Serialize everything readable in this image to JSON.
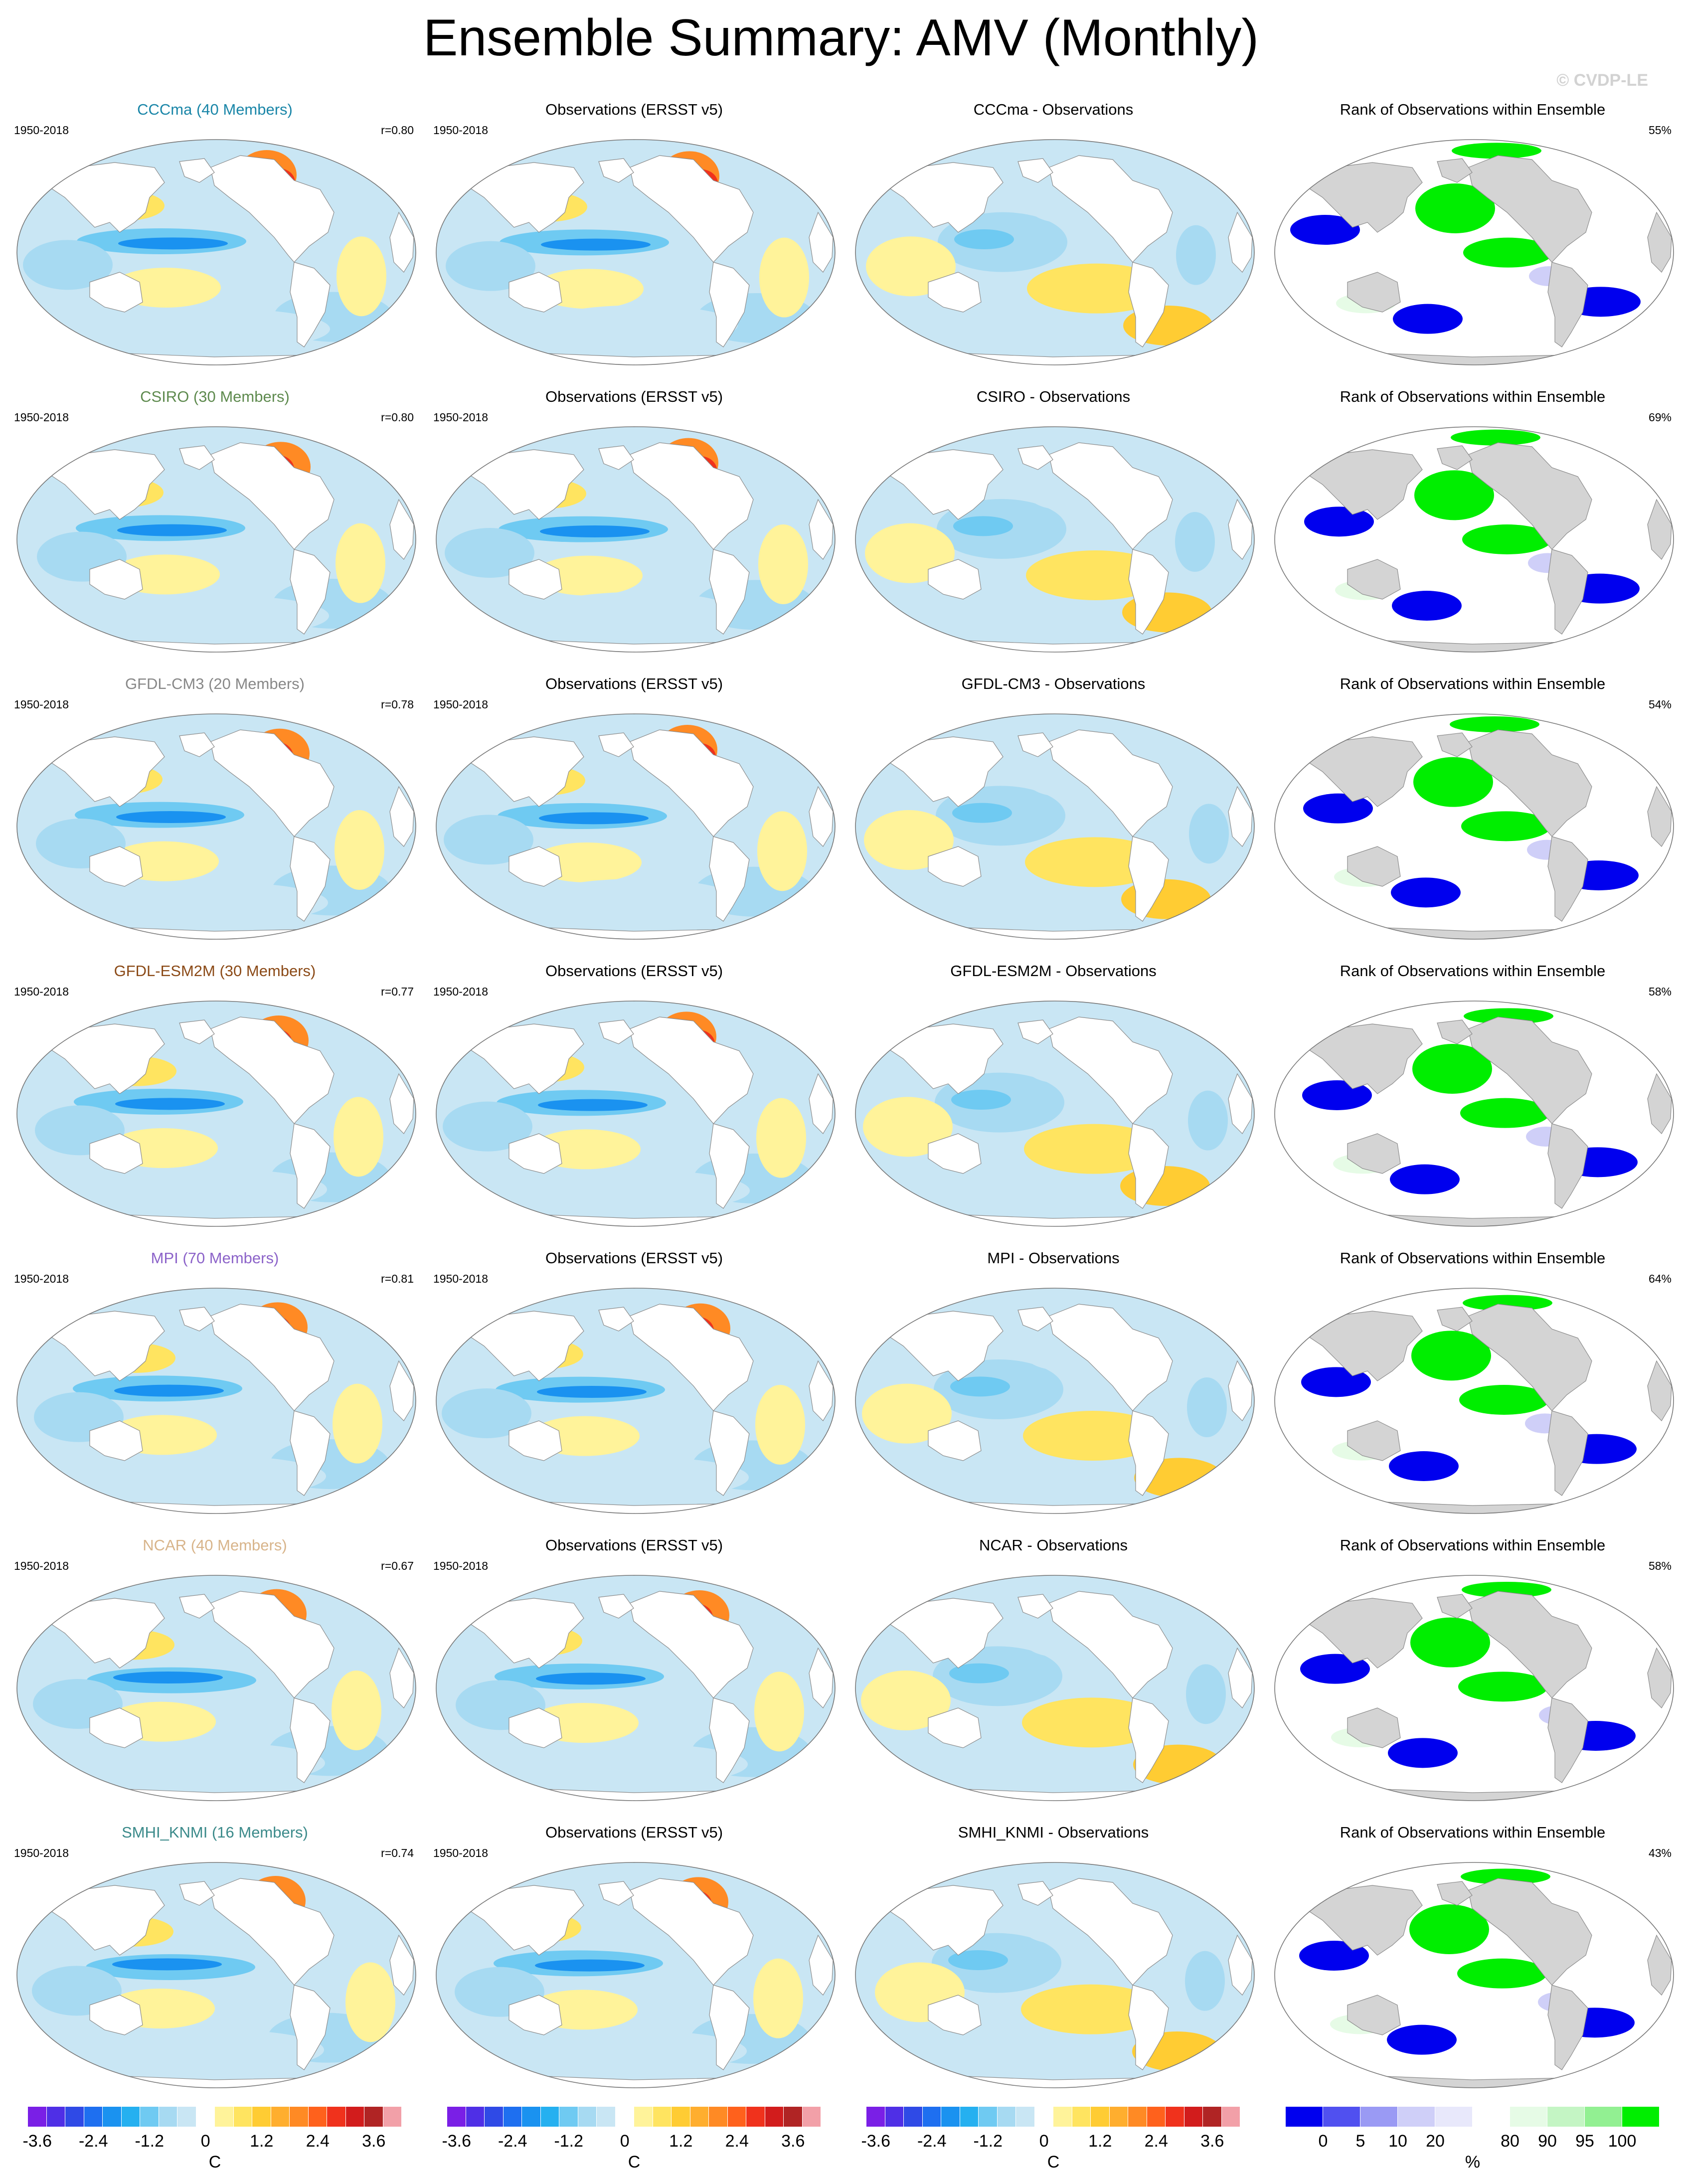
{
  "title": "Ensemble Summary: AMV (Monthly)",
  "copyright": "© CVDP-LE",
  "period": "1950-2018",
  "obs_title": "Observations (ERSST v5)",
  "rank_title": "Rank of Observations within Ensemble",
  "models": [
    {
      "title": "CCCma (40 Members)",
      "corr": "r=0.80",
      "diff": "CCCma - Observations",
      "rank_pct": "55%",
      "color": "#1a86a8"
    },
    {
      "title": "CSIRO (30 Members)",
      "corr": "r=0.80",
      "diff": "CSIRO - Observations",
      "rank_pct": "69%",
      "color": "#5e8a4e"
    },
    {
      "title": "GFDL-CM3 (20 Members)",
      "corr": "r=0.78",
      "diff": "GFDL-CM3 - Observations",
      "rank_pct": "54%",
      "color": "#888888"
    },
    {
      "title": "GFDL-ESM2M (30 Members)",
      "corr": "r=0.77",
      "diff": "GFDL-ESM2M - Observations",
      "rank_pct": "58%",
      "color": "#8b4a17"
    },
    {
      "title": "MPI (70 Members)",
      "corr": "r=0.81",
      "diff": "MPI - Observations",
      "rank_pct": "64%",
      "color": "#8c63c9"
    },
    {
      "title": "NCAR (40 Members)",
      "corr": "r=0.67",
      "diff": "NCAR - Observations",
      "rank_pct": "58%",
      "color": "#d8b48a"
    },
    {
      "title": "SMHI_KNMI (16 Members)",
      "corr": "r=0.74",
      "diff": "SMHI_KNMI - Observations",
      "rank_pct": "43%",
      "color": "#3b8a8a"
    }
  ],
  "colorbars": {
    "temp_labels": [
      "-3.6",
      "-2.4",
      "-1.2",
      "0",
      "1.2",
      "2.4",
      "3.6"
    ],
    "temp_unit": "C",
    "temp_colors": [
      "#7a1fe6",
      "#4f2fe6",
      "#2f4ae6",
      "#1e6ff0",
      "#1a92f0",
      "#25b0f0",
      "#6fcaf2",
      "#a7daf2",
      "#c9e6f4",
      "#ffffff",
      "#fff39a",
      "#ffe460",
      "#ffcc33",
      "#ffae2e",
      "#ff8a24",
      "#ff611c",
      "#f0321c",
      "#d21c1c",
      "#b02424",
      "#f2a0a8"
    ],
    "rank_labels": [
      "0",
      "5",
      "10",
      "20",
      "80",
      "90",
      "95",
      "100"
    ],
    "rank_unit": "%",
    "rank_colors": [
      "#0000ee",
      "#5050f0",
      "#9a9af4",
      "#cfcff8",
      "#e8e8fb",
      "#ffffff",
      "#e6fbe6",
      "#c4f5c4",
      "#92f092",
      "#00ee00"
    ]
  }
}
